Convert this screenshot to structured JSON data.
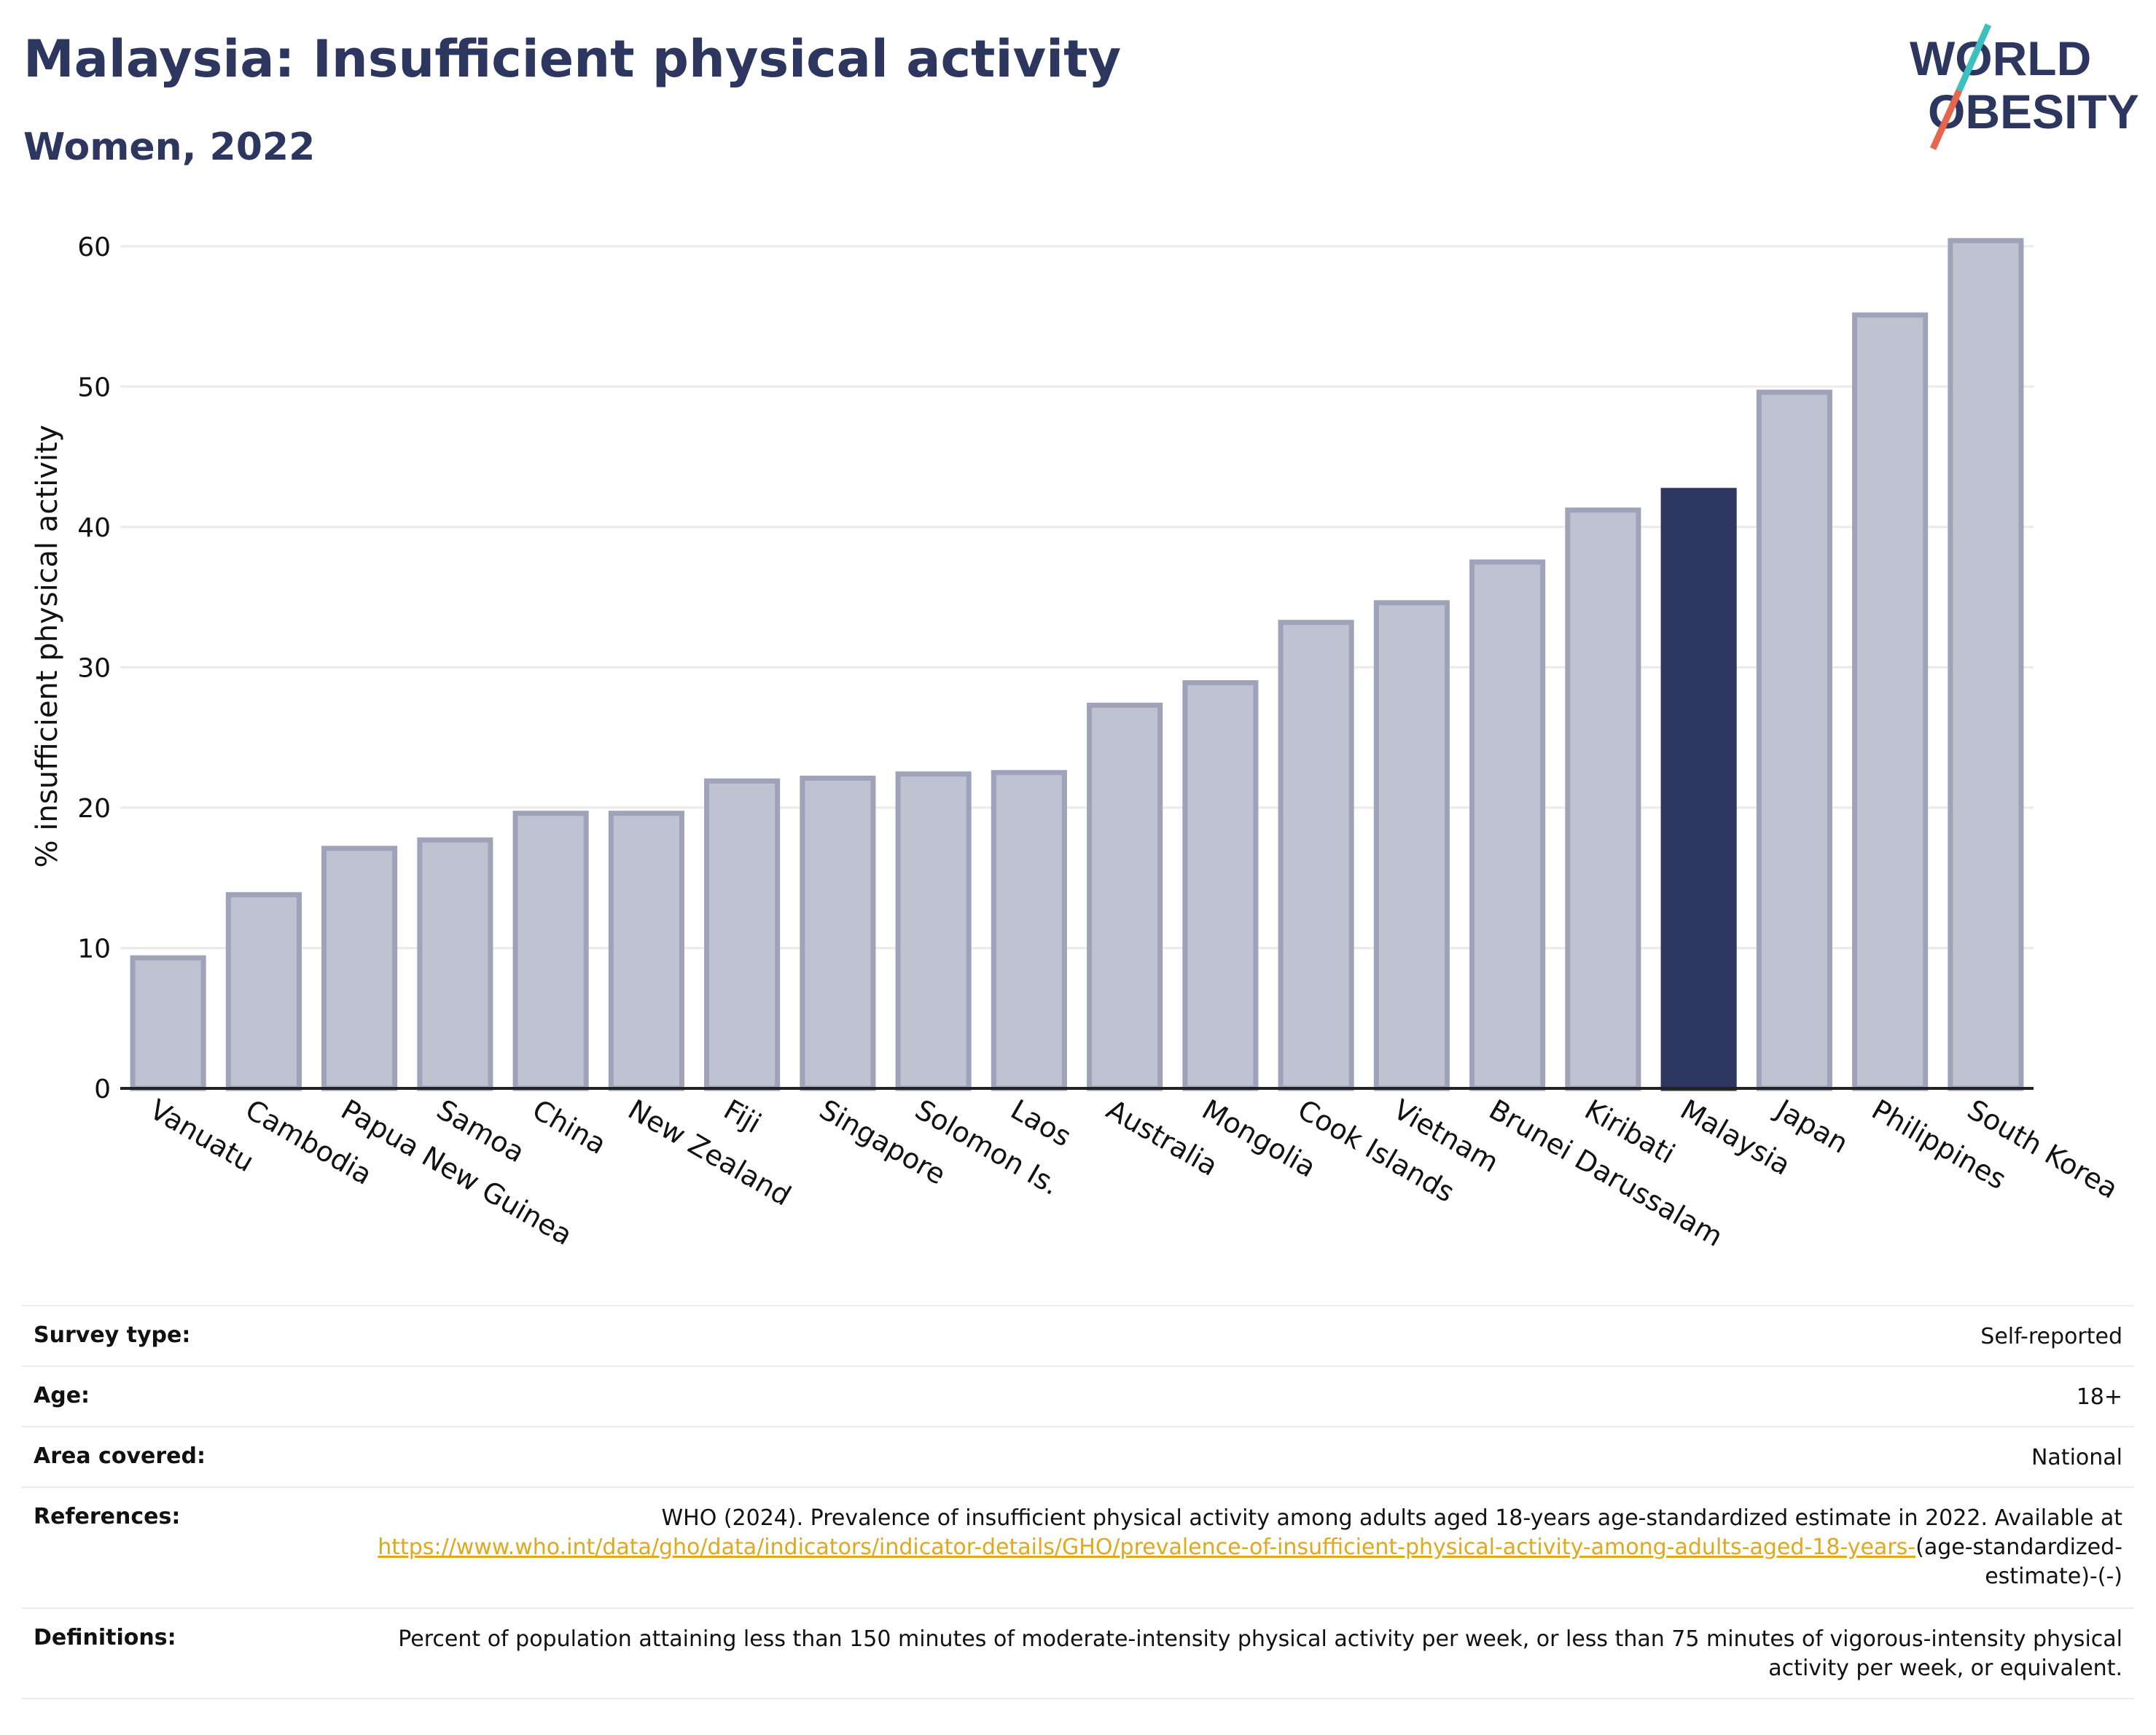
{
  "header": {
    "title": "Malaysia: Insufficient physical activity",
    "subtitle": "Women, 2022"
  },
  "logo": {
    "line1": "WORLD",
    "line2": "OBESITY",
    "accent_teal": "#3cbfbf",
    "accent_red": "#e5664f",
    "text_color": "#2d365f"
  },
  "chart_data": {
    "type": "bar",
    "categories": [
      "Vanuatu",
      "Cambodia",
      "Papua New Guinea",
      "Samoa",
      "China",
      "New Zealand",
      "Fiji",
      "Singapore",
      "Solomon Is.",
      "Laos",
      "Australia",
      "Mongolia",
      "Cook Islands",
      "Vietnam",
      "Brunei Darussalam",
      "Kiribati",
      "Malaysia",
      "Japan",
      "Philippines",
      "South Korea"
    ],
    "values": [
      9.3,
      13.8,
      17.1,
      17.7,
      19.6,
      19.6,
      21.9,
      22.1,
      22.4,
      22.5,
      27.3,
      28.9,
      33.2,
      34.6,
      37.5,
      41.2,
      42.6,
      49.6,
      55.1,
      60.4
    ],
    "highlight": "Malaysia",
    "xlabel": "",
    "ylabel": "% insufficient physical activity",
    "ylim": [
      0,
      63
    ],
    "yticks": [
      0,
      10,
      20,
      30,
      40,
      50,
      60
    ],
    "grid": true,
    "colors": {
      "bar": "#bfc2d0",
      "bar_edge": "#9ea3ba",
      "highlight": "#2d365f",
      "grid": "#ebebeb"
    }
  },
  "meta": {
    "survey_type": {
      "label": "Survey type:",
      "value": "Self-reported"
    },
    "age": {
      "label": "Age:",
      "value": "18+"
    },
    "area": {
      "label": "Area covered:",
      "value": "National"
    },
    "references": {
      "label": "References:",
      "text": "WHO (2024). Prevalence of insufficient physical activity among adults aged 18-years age-standardized estimate in 2022. Available at",
      "link": "https://www.who.int/data/gho/data/indicators/indicator-details/GHO/prevalence-of-insufficient-physical-activity-among-adults-aged-18-years-",
      "suffix": "(age-standardized-estimate)-(-)"
    },
    "definitions": {
      "label": "Definitions:",
      "value": "Percent of population attaining less than 150 minutes of moderate-intensity physical activity per week, or less than 75 minutes of vigorous-intensity physical activity per week, or equivalent."
    }
  }
}
